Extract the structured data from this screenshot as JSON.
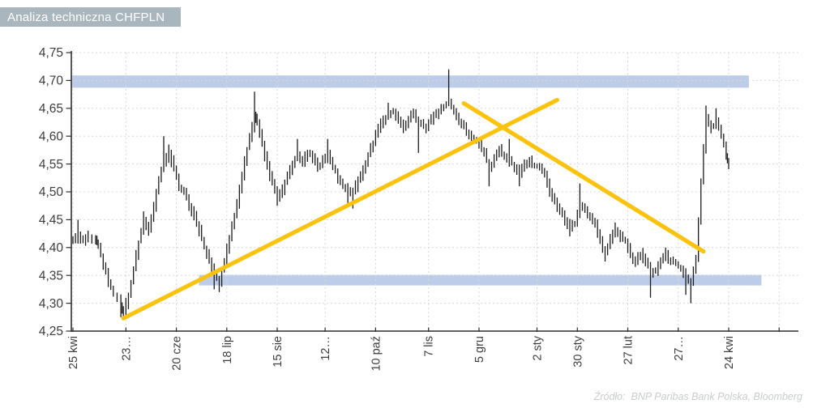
{
  "header": {
    "title": "Analiza techniczna CHFPLN"
  },
  "source_note": "Źródło:  BNP Paribas Bank Polska, Bloomberg",
  "colors": {
    "header_bg": "#a9b6be",
    "header_text": "#ffffff",
    "band": "#bdcde9",
    "trendline": "#fcc30e",
    "bars": "#1c1c1c",
    "grid": "#d8d8d8",
    "axis": "#2e2e2e",
    "tick_text": "#3d3d3d",
    "source_text": "#c9cccd"
  },
  "bar_noise": {
    "base": 0.002,
    "amp": 0.009
  },
  "chart_data": {
    "type": "ohlc",
    "title": "Analiza techniczna CHFPLN",
    "instrument": "CHFPLN",
    "xlabel": "",
    "ylabel": "",
    "ylim": [
      4.25,
      4.75
    ],
    "ytick_step": 0.05,
    "grid": true,
    "legend": "none",
    "ytick_labels": [
      "4,75",
      "4,70",
      "4,65",
      "4,60",
      "4,55",
      "4,50",
      "4,45",
      "4,40",
      "4,35",
      "4,30",
      "4,25"
    ],
    "xtick_labels": [
      "25 kwi",
      "23…",
      "20 cze",
      "18 lip",
      "15 sie",
      "12…",
      "10 paź",
      "7 lis",
      "5 gru",
      "2 sty",
      "30 sty",
      "27 lut",
      "27…",
      "24 kwi",
      ""
    ],
    "xtick_days": [
      0,
      21,
      41,
      61,
      81,
      100,
      120,
      141,
      161,
      184,
      200,
      220,
      240,
      260,
      280
    ],
    "total_days": 260,
    "resistance_zone": {
      "low": 4.687,
      "high": 4.709,
      "start_day": -0.6,
      "end_day": 268
    },
    "support_zone": {
      "low": 4.332,
      "high": 4.351,
      "start_day": 50,
      "end_day": 273
    },
    "trendlines": [
      {
        "name": "uptrend",
        "from": {
          "day": 20,
          "value": 4.273
        },
        "to": {
          "day": 192,
          "value": 4.665
        }
      },
      {
        "name": "downtrend",
        "from": {
          "day": 155,
          "value": 4.659
        },
        "to": {
          "day": 250,
          "value": 4.393
        }
      }
    ],
    "series": {
      "name": "CHFPLN",
      "point_format": [
        "day",
        "close",
        "high_wick",
        "low_wick"
      ],
      "points": [
        [
          0,
          4.41
        ],
        [
          2,
          4.425,
          4.45
        ],
        [
          4,
          4.41
        ],
        [
          6,
          4.42
        ],
        [
          9,
          4.415
        ],
        [
          10,
          4.4
        ],
        [
          12,
          4.37
        ],
        [
          14,
          4.34
        ],
        [
          16,
          4.315
        ],
        [
          19,
          4.295,
          null,
          4.275
        ],
        [
          20,
          4.285
        ],
        [
          22,
          4.315
        ],
        [
          24,
          4.36
        ],
        [
          26,
          4.41
        ],
        [
          28,
          4.445,
          4.465
        ],
        [
          30,
          4.43
        ],
        [
          32,
          4.475
        ],
        [
          34,
          4.52
        ],
        [
          36,
          4.555,
          4.6
        ],
        [
          38,
          4.565,
          4.585
        ],
        [
          40,
          4.545
        ],
        [
          42,
          4.51
        ],
        [
          44,
          4.5
        ],
        [
          46,
          4.475
        ],
        [
          48,
          4.455
        ],
        [
          50,
          4.43
        ],
        [
          52,
          4.4
        ],
        [
          54,
          4.375
        ],
        [
          56,
          4.35,
          null,
          4.325
        ],
        [
          58,
          4.34,
          null,
          4.32
        ],
        [
          60,
          4.375
        ],
        [
          62,
          4.42
        ],
        [
          64,
          4.455
        ],
        [
          66,
          4.505
        ],
        [
          68,
          4.555
        ],
        [
          70,
          4.6
        ],
        [
          72,
          4.635,
          4.68
        ],
        [
          73,
          4.625
        ],
        [
          75,
          4.585
        ],
        [
          77,
          4.545
        ],
        [
          79,
          4.515
        ],
        [
          81,
          4.49,
          null,
          4.475
        ],
        [
          83,
          4.505
        ],
        [
          85,
          4.53
        ],
        [
          87,
          4.55
        ],
        [
          89,
          4.565,
          4.595
        ],
        [
          91,
          4.555
        ],
        [
          93,
          4.57
        ],
        [
          95,
          4.56
        ],
        [
          97,
          4.545
        ],
        [
          99,
          4.555
        ],
        [
          101,
          4.565,
          4.595
        ],
        [
          103,
          4.545
        ],
        [
          105,
          4.525
        ],
        [
          107,
          4.51
        ],
        [
          109,
          4.5,
          null,
          4.48
        ],
        [
          111,
          4.5,
          null,
          4.47
        ],
        [
          113,
          4.52
        ],
        [
          115,
          4.54
        ],
        [
          117,
          4.565
        ],
        [
          119,
          4.59
        ],
        [
          121,
          4.615
        ],
        [
          123,
          4.63
        ],
        [
          125,
          4.64,
          4.66
        ],
        [
          127,
          4.645
        ],
        [
          129,
          4.625
        ],
        [
          131,
          4.615
        ],
        [
          133,
          4.63
        ],
        [
          135,
          4.64
        ],
        [
          137,
          4.625,
          null,
          4.57
        ],
        [
          139,
          4.615
        ],
        [
          141,
          4.625
        ],
        [
          143,
          4.635
        ],
        [
          145,
          4.645
        ],
        [
          147,
          4.655
        ],
        [
          149,
          4.66,
          4.72
        ],
        [
          151,
          4.645
        ],
        [
          153,
          4.625
        ],
        [
          155,
          4.615
        ],
        [
          157,
          4.6
        ],
        [
          159,
          4.595
        ],
        [
          161,
          4.585
        ],
        [
          163,
          4.57
        ],
        [
          165,
          4.54,
          null,
          4.51
        ],
        [
          167,
          4.56
        ],
        [
          169,
          4.575
        ],
        [
          171,
          4.565
        ],
        [
          173,
          4.555,
          4.595
        ],
        [
          175,
          4.545
        ],
        [
          177,
          4.535,
          null,
          4.51
        ],
        [
          179,
          4.55
        ],
        [
          181,
          4.555
        ],
        [
          183,
          4.545
        ],
        [
          185,
          4.545
        ],
        [
          187,
          4.53
        ],
        [
          189,
          4.5
        ],
        [
          191,
          4.48
        ],
        [
          193,
          4.465
        ],
        [
          195,
          4.45
        ],
        [
          197,
          4.435,
          null,
          4.42
        ],
        [
          199,
          4.445
        ],
        [
          201,
          4.475,
          4.515
        ],
        [
          203,
          4.465
        ],
        [
          205,
          4.455
        ],
        [
          207,
          4.44
        ],
        [
          209,
          4.41
        ],
        [
          211,
          4.39,
          null,
          4.375
        ],
        [
          213,
          4.415
        ],
        [
          215,
          4.43,
          4.445
        ],
        [
          217,
          4.42
        ],
        [
          219,
          4.41
        ],
        [
          221,
          4.385
        ],
        [
          223,
          4.375
        ],
        [
          225,
          4.39
        ],
        [
          227,
          4.375
        ],
        [
          229,
          4.355,
          null,
          4.31
        ],
        [
          231,
          4.36
        ],
        [
          233,
          4.375
        ],
        [
          235,
          4.385,
          4.4
        ],
        [
          237,
          4.375
        ],
        [
          239,
          4.37
        ],
        [
          241,
          4.36
        ],
        [
          243,
          4.345,
          null,
          4.315
        ],
        [
          245,
          4.335,
          null,
          4.3
        ],
        [
          247,
          4.38
        ],
        [
          249,
          4.52
        ],
        [
          251,
          4.63,
          4.655
        ],
        [
          253,
          4.615
        ],
        [
          255,
          4.625,
          4.65
        ],
        [
          257,
          4.6
        ],
        [
          259,
          4.565
        ],
        [
          260,
          4.545
        ]
      ]
    }
  }
}
